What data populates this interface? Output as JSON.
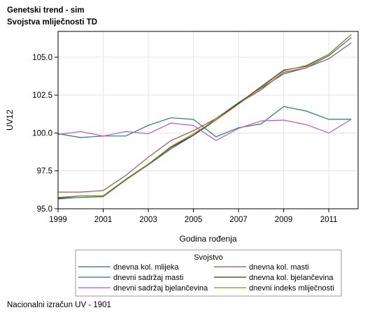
{
  "header": {
    "title": "Genetski trend - sim",
    "subtitle": "Svojstva mliječnosti TD"
  },
  "footnote": "Nacionalni izračun UV - 1901",
  "chart_data": {
    "type": "line",
    "xlabel": "Godina rođenja",
    "ylabel": "UV12",
    "xlim": [
      1999,
      2012.3
    ],
    "ylim": [
      95.0,
      106.7
    ],
    "xticks": [
      1999,
      2001,
      2003,
      2005,
      2007,
      2009,
      2011
    ],
    "yticks": [
      95.0,
      97.5,
      100.0,
      102.5,
      105.0
    ],
    "ytick_labels": [
      "95.0",
      "97.5",
      "100.0",
      "102.5",
      "105.0"
    ],
    "grid": true,
    "legend_title": "Svojstvo",
    "legend_position": "bottom",
    "x": [
      1999,
      2000,
      2001,
      2002,
      2003,
      2004,
      2005,
      2006,
      2007,
      2008,
      2009,
      2010,
      2011,
      2012
    ],
    "series": [
      {
        "name": "dnevna kol. mlijeka",
        "color": "#2a6f8a",
        "values": [
          95.65,
          95.75,
          95.8,
          96.9,
          97.9,
          98.95,
          99.85,
          100.95,
          102.0,
          102.95,
          103.9,
          104.3,
          105.1,
          106.3
        ]
      },
      {
        "name": "dnevna kol. masti",
        "color": "#a3504e",
        "values": [
          96.1,
          96.1,
          96.2,
          97.2,
          98.4,
          99.5,
          100.15,
          100.95,
          101.95,
          102.85,
          104.0,
          104.3,
          104.9,
          105.95
        ]
      },
      {
        "name": "dnevni sadržaj masti",
        "color": "#2a7a6c",
        "values": [
          99.95,
          99.7,
          99.8,
          99.8,
          100.5,
          101.0,
          100.9,
          99.75,
          100.35,
          100.6,
          101.75,
          101.45,
          100.9,
          100.9
        ]
      },
      {
        "name": "dnevna kol. bjelančevina",
        "color": "#3d3320",
        "values": [
          95.7,
          95.85,
          95.85,
          96.95,
          97.95,
          99.05,
          99.85,
          100.85,
          101.95,
          103.05,
          104.15,
          104.4,
          105.2,
          106.5
        ]
      },
      {
        "name": "dnevni sadržaj bjelančevina",
        "color": "#b858d0",
        "values": [
          99.9,
          100.1,
          99.8,
          100.1,
          99.95,
          100.65,
          100.5,
          99.5,
          100.3,
          100.8,
          100.85,
          100.55,
          100.0,
          100.9
        ]
      },
      {
        "name": "dnevni indeks mliječnosti",
        "color": "#8e8c22",
        "values": [
          95.75,
          95.85,
          95.85,
          96.95,
          97.95,
          99.1,
          99.95,
          100.85,
          101.9,
          103.0,
          104.1,
          104.45,
          105.2,
          106.5
        ]
      }
    ]
  }
}
